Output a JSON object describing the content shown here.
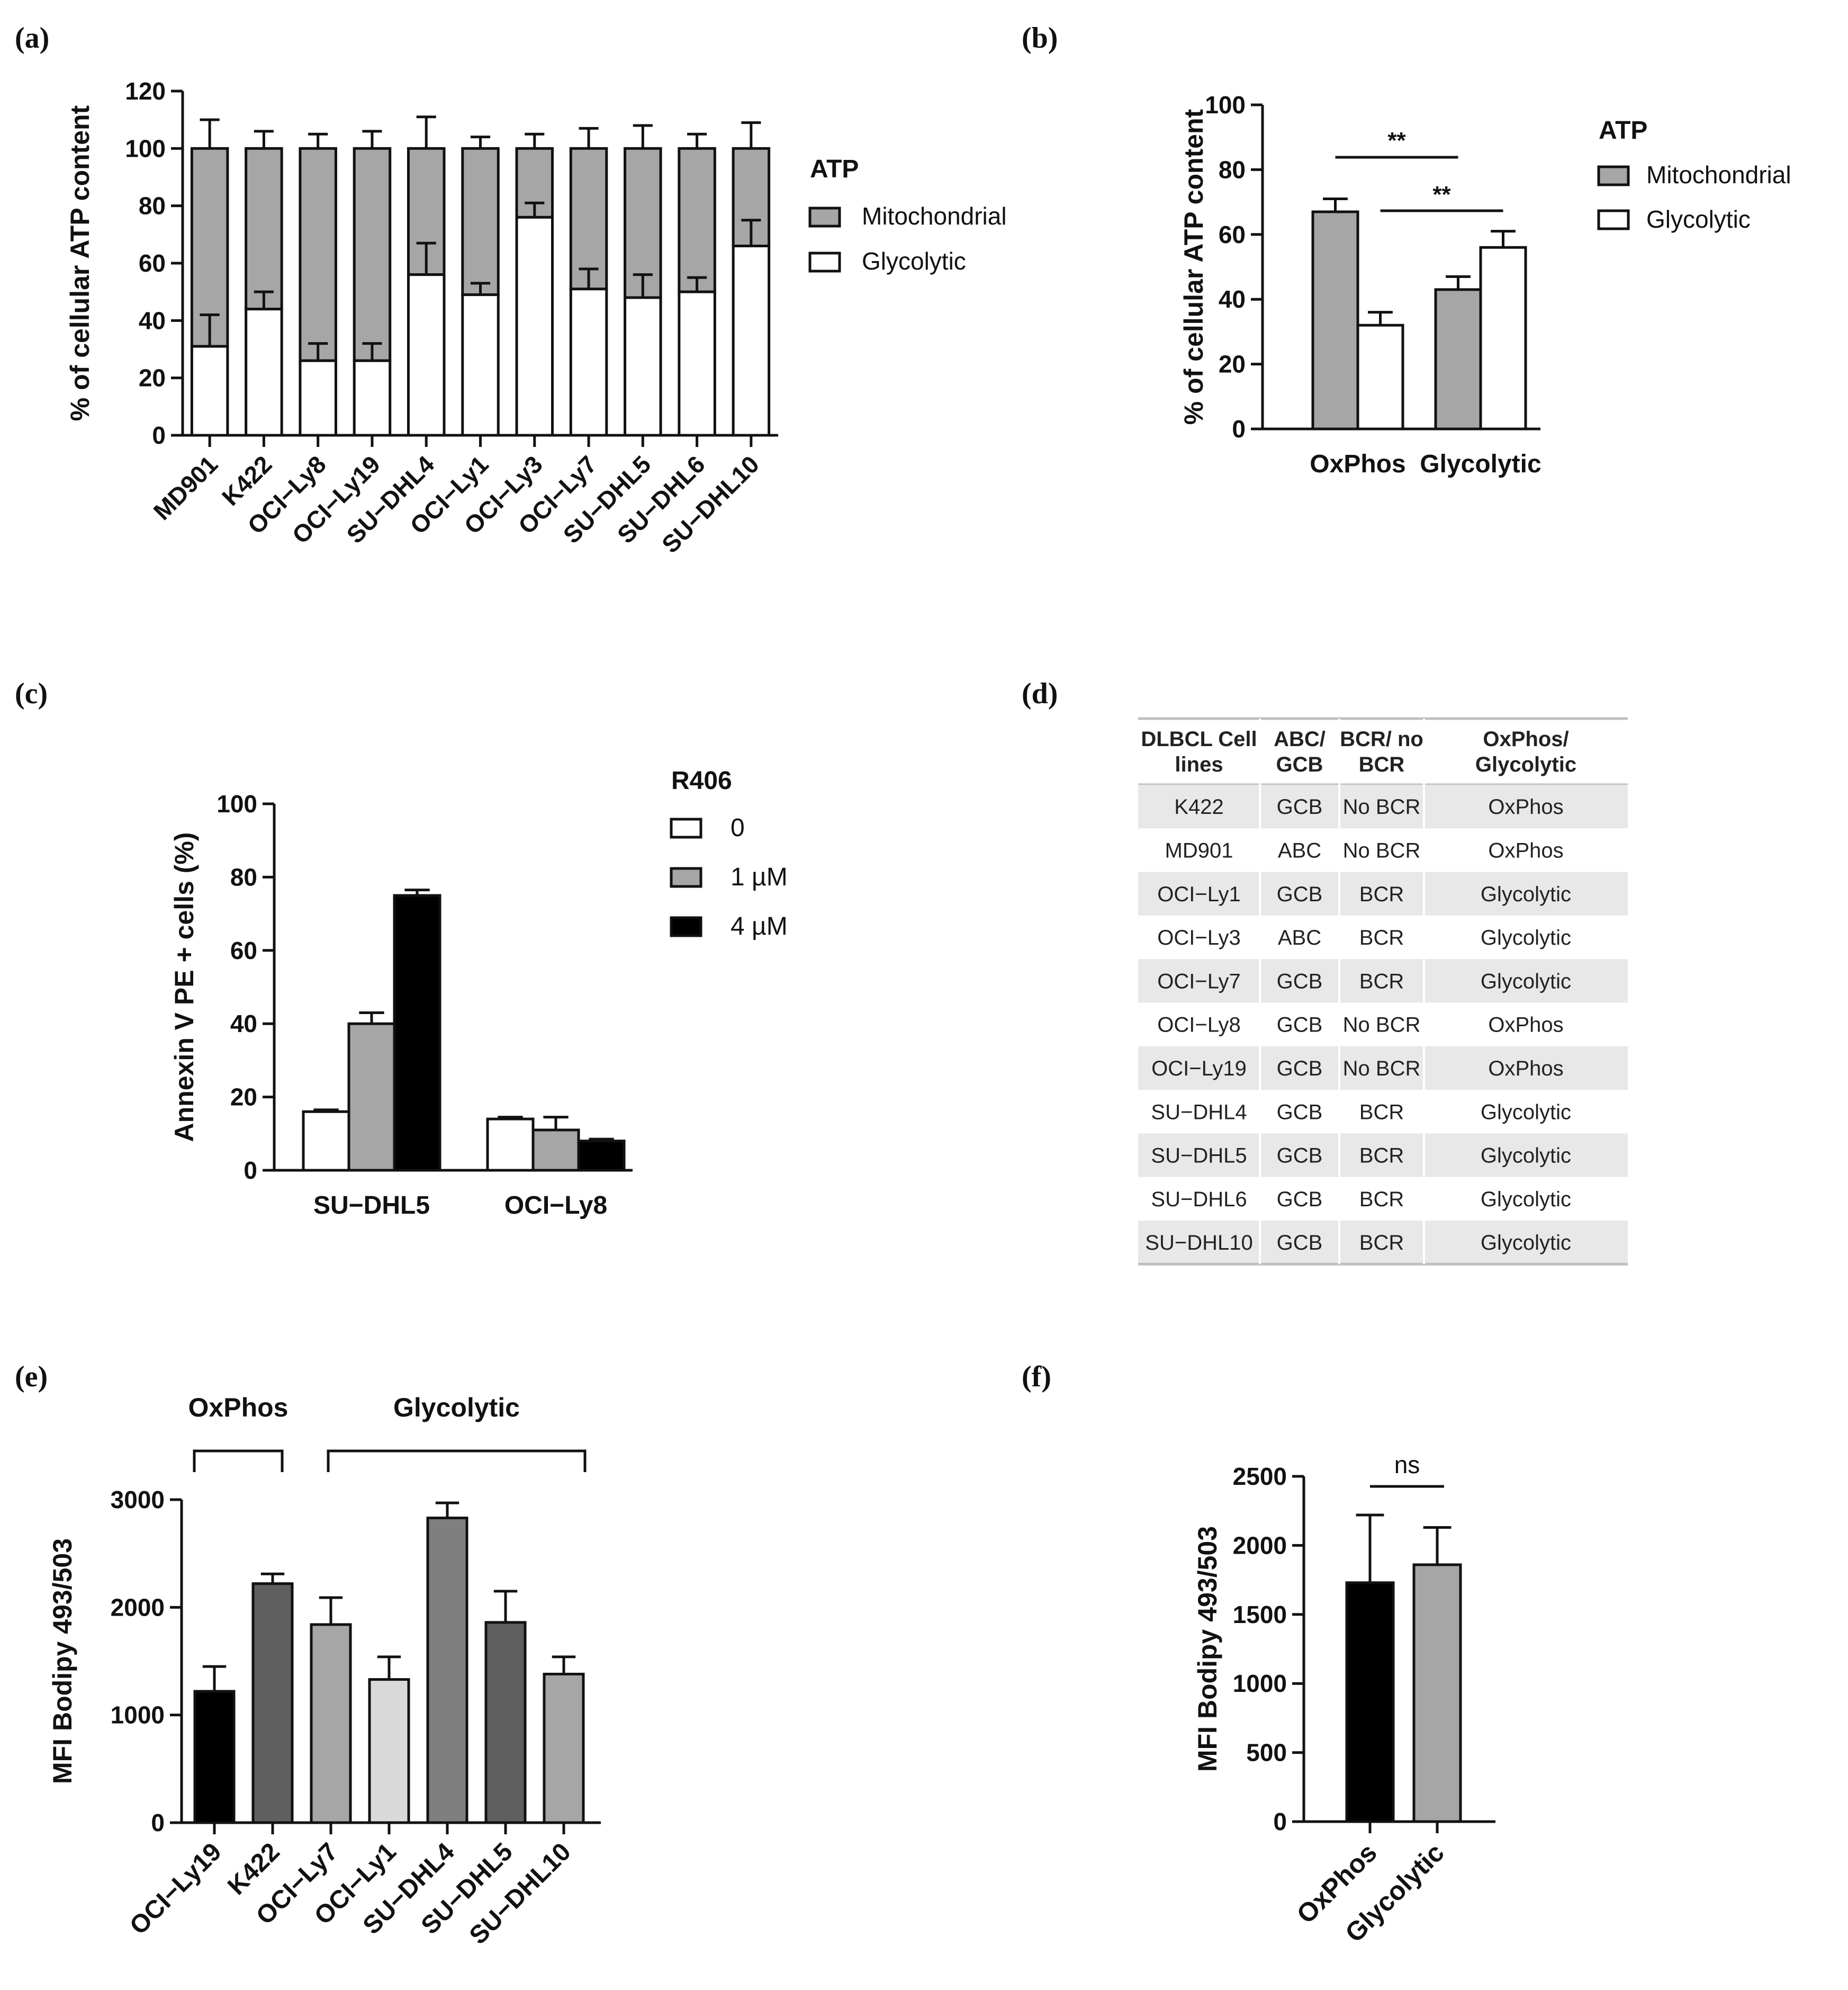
{
  "panels": {
    "a": "(a)",
    "b": "(b)",
    "c": "(c)",
    "d": "(d)",
    "e": "(e)",
    "f": "(f)"
  },
  "colors": {
    "mito": "#a6a6a6",
    "glyco": "#ffffff",
    "r406_1": "#a6a6a6",
    "r406_4": "#000000"
  },
  "chart_data": [
    {
      "id": "a",
      "type": "bar",
      "stacked": true,
      "ylabel": "% of cellular ATP content",
      "ylim": [
        0,
        120
      ],
      "yticks": [
        0,
        20,
        40,
        60,
        80,
        100,
        120
      ],
      "categories": [
        "MD901",
        "K422",
        "OCI−Ly8",
        "OCI−Ly19",
        "SU−DHL4",
        "OCI−Ly1",
        "OCI−Ly3",
        "OCI−Ly7",
        "SU−DHL5",
        "SU−DHL6",
        "SU−DHL10"
      ],
      "legend_title": "ATP",
      "series": [
        {
          "name": "Glycolytic",
          "values": [
            31,
            44,
            26,
            26,
            56,
            49,
            76,
            51,
            48,
            50,
            66
          ],
          "errors": [
            11,
            6,
            6,
            6,
            11,
            4,
            5,
            7,
            8,
            5,
            9
          ]
        },
        {
          "name": "Mitochondrial",
          "values": [
            69,
            56,
            74,
            74,
            44,
            51,
            24,
            49,
            52,
            50,
            34
          ],
          "errors": [
            10,
            6,
            5,
            6,
            11,
            4,
            5,
            7,
            8,
            5,
            9
          ]
        }
      ]
    },
    {
      "id": "b",
      "type": "bar",
      "ylabel": "% of cellular ATP content",
      "ylim": [
        0,
        100
      ],
      "yticks": [
        0,
        20,
        40,
        60,
        80,
        100
      ],
      "categories": [
        "OxPhos",
        "Glycolytic"
      ],
      "legend_title": "ATP",
      "series": [
        {
          "name": "Mitochondrial",
          "values": [
            67,
            43
          ],
          "errors": [
            4,
            4
          ]
        },
        {
          "name": "Glycolytic",
          "values": [
            32,
            56
          ],
          "errors": [
            4,
            5
          ]
        }
      ],
      "annotations": [
        "**",
        "**"
      ]
    },
    {
      "id": "c",
      "type": "bar",
      "ylabel": "Annexin V PE + cells (%)",
      "ylim": [
        0,
        100
      ],
      "yticks": [
        0,
        20,
        40,
        60,
        80,
        100
      ],
      "categories": [
        "SU−DHL5",
        "OCI−Ly8"
      ],
      "legend_title": "R406",
      "series": [
        {
          "name": "0",
          "values": [
            16,
            14
          ],
          "errors": [
            0.5,
            0.5
          ]
        },
        {
          "name": "1 µM",
          "values": [
            40,
            11
          ],
          "errors": [
            3,
            3.5
          ]
        },
        {
          "name": "4 µM",
          "values": [
            75,
            8
          ],
          "errors": [
            1.5,
            0.5
          ]
        }
      ]
    },
    {
      "id": "d",
      "type": "table",
      "columns": [
        "DLBCL Cell lines",
        "ABC/ GCB",
        "BCR/ no BCR",
        "OxPhos/ Glycolytic"
      ],
      "rows": [
        [
          "K422",
          "GCB",
          "No BCR",
          "OxPhos"
        ],
        [
          "MD901",
          "ABC",
          "No BCR",
          "OxPhos"
        ],
        [
          "OCI−Ly1",
          "GCB",
          "BCR",
          "Glycolytic"
        ],
        [
          "OCI−Ly3",
          "ABC",
          "BCR",
          "Glycolytic"
        ],
        [
          "OCI−Ly7",
          "GCB",
          "BCR",
          "Glycolytic"
        ],
        [
          "OCI−Ly8",
          "GCB",
          "No BCR",
          "OxPhos"
        ],
        [
          "OCI−Ly19",
          "GCB",
          "No BCR",
          "OxPhos"
        ],
        [
          "SU−DHL4",
          "GCB",
          "BCR",
          "Glycolytic"
        ],
        [
          "SU−DHL5",
          "GCB",
          "BCR",
          "Glycolytic"
        ],
        [
          "SU−DHL6",
          "GCB",
          "BCR",
          "Glycolytic"
        ],
        [
          "SU−DHL10",
          "GCB",
          "BCR",
          "Glycolytic"
        ]
      ]
    },
    {
      "id": "e",
      "type": "bar",
      "ylabel": "MFI Bodipy 493/503",
      "ylim": [
        0,
        3000
      ],
      "yticks": [
        0,
        1000,
        2000,
        3000
      ],
      "categories": [
        "OCI−Ly19",
        "K422",
        "OCI−Ly7",
        "OCI−Ly1",
        "SU−DHL4",
        "SU−DHL5",
        "SU−DHL10"
      ],
      "values": [
        1220,
        2220,
        1840,
        1330,
        2830,
        1860,
        1380
      ],
      "errors": [
        230,
        90,
        250,
        210,
        140,
        290,
        160
      ],
      "bar_colors": [
        "#000000",
        "#5f5f5f",
        "#a6a6a6",
        "#d9d9d9",
        "#7f7f7f",
        "#5f5f5f",
        "#a6a6a6"
      ],
      "groups": [
        {
          "label": "OxPhos",
          "from": 0,
          "to": 1
        },
        {
          "label": "Glycolytic",
          "from": 2,
          "to": 6
        }
      ]
    },
    {
      "id": "f",
      "type": "bar",
      "ylabel": "MFI Bodipy 493/503",
      "ylim": [
        0,
        2500
      ],
      "yticks": [
        0,
        500,
        1000,
        1500,
        2000,
        2500
      ],
      "categories": [
        "OxPhos",
        "Glycolytic"
      ],
      "values": [
        1730,
        1860
      ],
      "errors": [
        490,
        270
      ],
      "bar_colors": [
        "#000000",
        "#a6a6a6"
      ],
      "annotation": "ns"
    }
  ]
}
